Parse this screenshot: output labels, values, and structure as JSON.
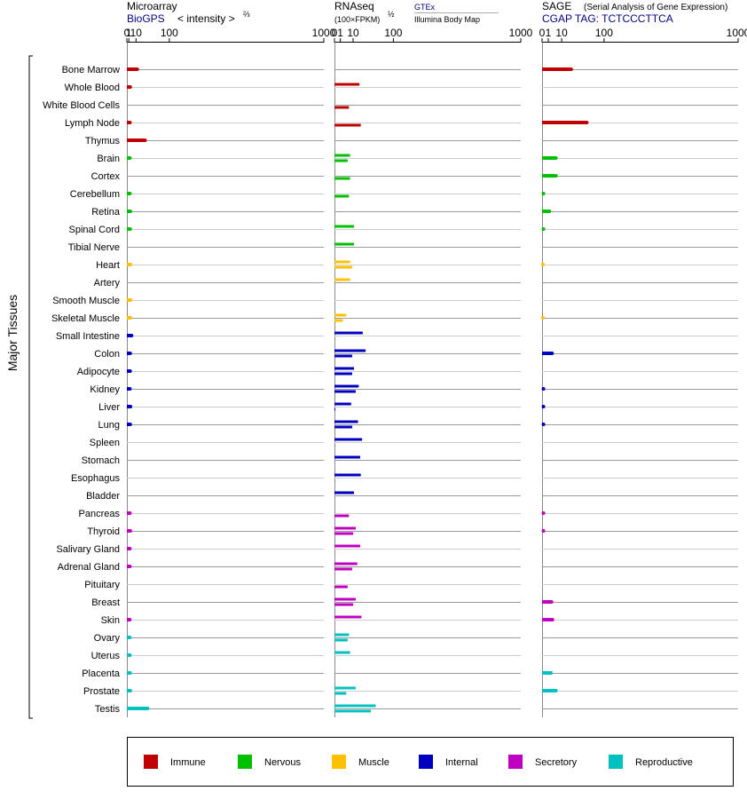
{
  "panels": {
    "microarray": {
      "title": "Microarray",
      "source": "BioGPS",
      "unit": "< intensity >",
      "unit_exp": "⅔"
    },
    "rnaseq": {
      "title": "RNAseq",
      "unit": "(100×FPKM)",
      "unit_exp": "½",
      "source_a": "GTEx",
      "source_b": "Illumina Body Map"
    },
    "sage": {
      "title": "SAGE",
      "subtitle": "(Serial Analysis of Gene Expression)",
      "tag": "CGAP TAG: TCTCCCTTCA"
    }
  },
  "axis_label": "Major Tissues",
  "legend": [
    {
      "label": "Immune",
      "color": "#c00000"
    },
    {
      "label": "Nervous",
      "color": "#00c000"
    },
    {
      "label": "Muscle",
      "color": "#ffc000"
    },
    {
      "label": "Internal",
      "color": "#0000c0"
    },
    {
      "label": "Secretory",
      "color": "#c000c0"
    },
    {
      "label": "Reproductive",
      "color": "#00c0c0"
    }
  ],
  "chart_data": {
    "type": "bar",
    "orientation": "horizontal",
    "scale": "power",
    "categories": [
      "Bone Marrow",
      "Whole Blood",
      "White Blood Cells",
      "Lymph Node",
      "Thymus",
      "Brain",
      "Cortex",
      "Cerebellum",
      "Retina",
      "Spinal Cord",
      "Tibial Nerve",
      "Heart",
      "Artery",
      "Smooth Muscle",
      "Skeletal Muscle",
      "Small Intestine",
      "Colon",
      "Adipocyte",
      "Kidney",
      "Liver",
      "Lung",
      "Spleen",
      "Stomach",
      "Esophagus",
      "Bladder",
      "Pancreas",
      "Thyroid",
      "Salivary Gland",
      "Adrenal Gland",
      "Pituitary",
      "Breast",
      "Skin",
      "Ovary",
      "Uterus",
      "Placenta",
      "Prostate",
      "Testis"
    ],
    "groups": [
      "Immune",
      "Immune",
      "Immune",
      "Immune",
      "Immune",
      "Nervous",
      "Nervous",
      "Nervous",
      "Nervous",
      "Nervous",
      "Nervous",
      "Muscle",
      "Muscle",
      "Muscle",
      "Muscle",
      "Internal",
      "Internal",
      "Internal",
      "Internal",
      "Internal",
      "Internal",
      "Internal",
      "Internal",
      "Internal",
      "Internal",
      "Secretory",
      "Secretory",
      "Secretory",
      "Secretory",
      "Secretory",
      "Secretory",
      "Secretory",
      "Reproductive",
      "Reproductive",
      "Reproductive",
      "Reproductive",
      "Reproductive"
    ],
    "ticks": [
      "0",
      "1",
      "10",
      "100",
      "1000"
    ],
    "xlim": [
      0,
      1000
    ],
    "series": [
      {
        "name": "Microarray",
        "values": [
          12,
          2.2,
          null,
          1.9,
          28,
          1.9,
          null,
          1.9,
          2.3,
          2.2,
          null,
          2.5,
          null,
          2.7,
          2.5,
          3.7,
          2.2,
          2.1,
          1.9,
          2.5,
          2.2,
          null,
          null,
          null,
          null,
          1.9,
          2.3,
          1.9,
          1.9,
          null,
          null,
          1.8,
          1.8,
          1.9,
          2.1,
          2.3,
          34
        ]
      },
      {
        "name": "GTEx",
        "values": [
          null,
          18,
          null,
          null,
          null,
          7,
          null,
          null,
          null,
          11,
          11,
          7,
          7,
          null,
          4,
          23,
          28,
          11,
          17,
          8,
          16,
          22,
          19,
          20,
          11,
          null,
          13,
          19,
          15,
          null,
          13,
          21,
          6,
          7,
          null,
          13,
          49
        ]
      },
      {
        "name": "Illumina Body Map",
        "values": [
          null,
          null,
          6,
          20,
          null,
          5,
          7,
          6,
          null,
          null,
          null,
          9,
          null,
          null,
          2,
          null,
          9,
          9,
          13,
          0.01,
          9,
          null,
          null,
          null,
          null,
          6,
          10,
          null,
          9,
          5,
          10,
          null,
          5,
          null,
          null,
          4,
          38
        ]
      },
      {
        "name": "SAGE",
        "values": [
          22,
          null,
          null,
          52,
          null,
          5,
          5,
          0.05,
          1.4,
          0.05,
          null,
          0.01,
          null,
          null,
          0.01,
          null,
          2.6,
          null,
          0.05,
          0.05,
          0.05,
          null,
          null,
          null,
          null,
          0.05,
          0.05,
          null,
          null,
          null,
          2.3,
          2.8,
          null,
          null,
          2.1,
          5,
          null
        ]
      }
    ]
  }
}
